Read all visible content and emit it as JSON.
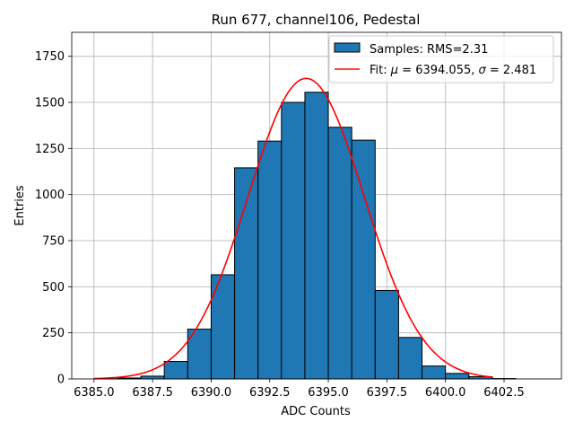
{
  "chart_data": {
    "type": "bar",
    "title": "Run 677, channel106, Pedestal",
    "xlabel": "ADC Counts",
    "ylabel": "Entries",
    "xlim": [
      6384.05,
      6404.95
    ],
    "ylim": [
      0,
      1880
    ],
    "x_ticks": [
      {
        "value": 6385.0,
        "label": "6385.0"
      },
      {
        "value": 6387.5,
        "label": "6387.5"
      },
      {
        "value": 6390.0,
        "label": "6390.0"
      },
      {
        "value": 6392.5,
        "label": "6392.5"
      },
      {
        "value": 6395.0,
        "label": "6395.0"
      },
      {
        "value": 6397.5,
        "label": "6397.5"
      },
      {
        "value": 6400.0,
        "label": "6400.0"
      },
      {
        "value": 6402.5,
        "label": "6402.5"
      }
    ],
    "y_ticks": [
      {
        "value": 0,
        "label": "0"
      },
      {
        "value": 250,
        "label": "250"
      },
      {
        "value": 500,
        "label": "500"
      },
      {
        "value": 750,
        "label": "750"
      },
      {
        "value": 1000,
        "label": "1000"
      },
      {
        "value": 1250,
        "label": "1250"
      },
      {
        "value": 1500,
        "label": "1500"
      },
      {
        "value": 1750,
        "label": "1750"
      }
    ],
    "grid": true,
    "legend_position": "top-right",
    "histogram": {
      "name": "Samples: RMS=2.31",
      "color": "#1f77b4",
      "edge_color": "#000000",
      "bins": [
        {
          "x0": 6385,
          "x1": 6386,
          "value": 1
        },
        {
          "x0": 6386,
          "x1": 6387,
          "value": 5
        },
        {
          "x0": 6387,
          "x1": 6388,
          "value": 15
        },
        {
          "x0": 6388,
          "x1": 6389,
          "value": 95
        },
        {
          "x0": 6389,
          "x1": 6390,
          "value": 270
        },
        {
          "x0": 6390,
          "x1": 6391,
          "value": 565
        },
        {
          "x0": 6391,
          "x1": 6392,
          "value": 1145
        },
        {
          "x0": 6392,
          "x1": 6393,
          "value": 1290
        },
        {
          "x0": 6393,
          "x1": 6394,
          "value": 1500
        },
        {
          "x0": 6394,
          "x1": 6395,
          "value": 1555
        },
        {
          "x0": 6395,
          "x1": 6396,
          "value": 1365
        },
        {
          "x0": 6396,
          "x1": 6397,
          "value": 1295
        },
        {
          "x0": 6397,
          "x1": 6398,
          "value": 480
        },
        {
          "x0": 6398,
          "x1": 6399,
          "value": 225
        },
        {
          "x0": 6399,
          "x1": 6400,
          "value": 70
        },
        {
          "x0": 6400,
          "x1": 6401,
          "value": 30
        },
        {
          "x0": 6401,
          "x1": 6402,
          "value": 12
        },
        {
          "x0": 6402,
          "x1": 6403,
          "value": 2
        },
        {
          "x0": 6403,
          "x1": 6404,
          "value": 0
        }
      ]
    },
    "fit": {
      "name": "Fit: μ = 6394.055, σ = 2.481",
      "label_prefix": "Fit: ",
      "mu_symbol": "μ",
      "mu_text": " = 6394.055, ",
      "sigma_symbol": "σ",
      "sigma_text": " = 2.481",
      "color": "#ff0000",
      "mu": 6394.055,
      "sigma": 2.481,
      "amplitude": 1630,
      "x_range": [
        6385,
        6402
      ]
    }
  }
}
